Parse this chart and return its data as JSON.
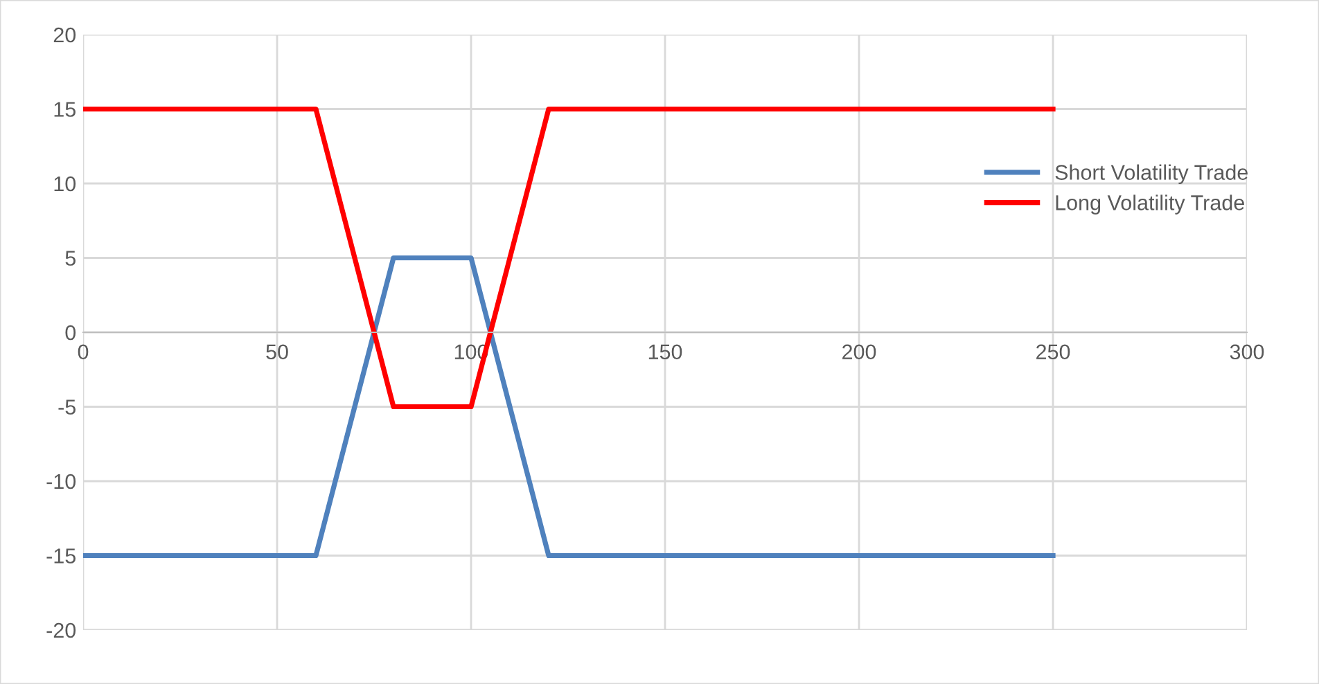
{
  "chart_data": {
    "type": "line",
    "xlim": [
      0,
      300
    ],
    "xticks": [
      0,
      50,
      100,
      150,
      200,
      250,
      300
    ],
    "ylim": [
      -20,
      20
    ],
    "yticks": [
      -20,
      -15,
      -10,
      -5,
      0,
      5,
      10,
      15,
      20
    ],
    "grid": true,
    "legend": "right",
    "marker": "none",
    "line_style": "solid",
    "series": [
      {
        "name": "Short Volatility Trade",
        "color": "#4f81bd",
        "x": [
          0,
          60,
          80,
          100,
          120,
          250
        ],
        "values": [
          -15,
          -15,
          5,
          5,
          -15,
          -15
        ]
      },
      {
        "name": "Long Volatility Trade",
        "color": "#ff0000",
        "x": [
          0,
          60,
          80,
          100,
          120,
          250
        ],
        "values": [
          15,
          15,
          -5,
          -5,
          15,
          15
        ]
      }
    ]
  }
}
